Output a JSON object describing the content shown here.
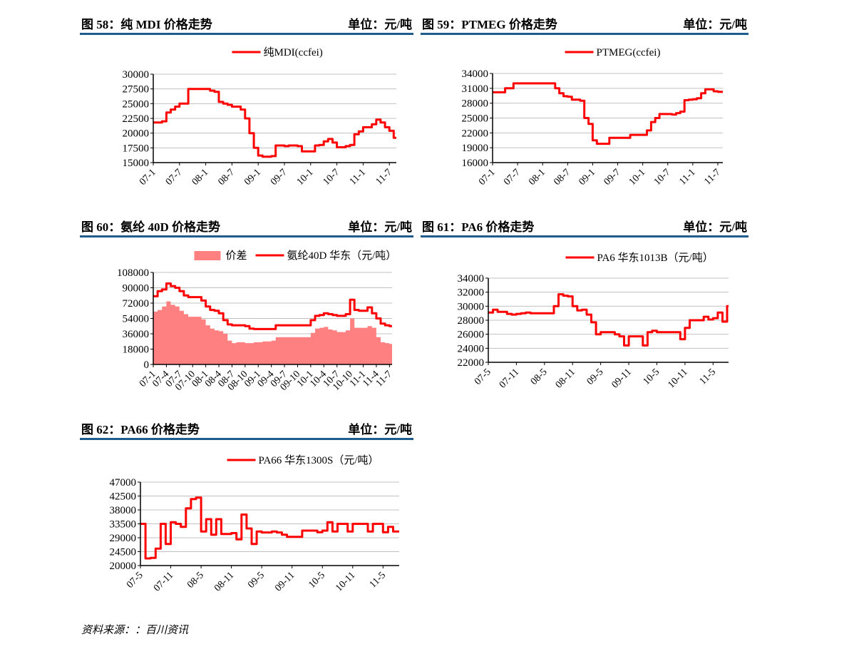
{
  "headers": [
    {
      "title": "图 58：纯 MDI 价格走势",
      "unit": "单位：元/吨"
    },
    {
      "title": "图 59：PTMEG 价格走势",
      "unit": "单位：元/吨"
    },
    {
      "title": "图 60：氨纶 40D 价格走势",
      "unit": "单位：元/吨"
    },
    {
      "title": "图 61：PA6 价格走势",
      "unit": "单位：元/吨"
    },
    {
      "title": "图 62：PA66 价格走势",
      "unit": "单位：元/吨"
    }
  ],
  "source": "资料来源：：百川资讯",
  "colors": {
    "line": "#ff0000",
    "area": "#ff8080",
    "grid": "#c0c0c0",
    "header_rule": "#1f5c8b"
  },
  "chart_data": [
    {
      "type": "line",
      "title": "纯 MDI 价格走势",
      "x_unit": "months since 2007-01",
      "xlim": [
        0,
        55.6
      ],
      "ylim": [
        15000,
        30000
      ],
      "yticks": [
        "15000",
        "17500",
        "20000",
        "22500",
        "25000",
        "27500",
        "30000"
      ],
      "xticks": [
        {
          "m": 0,
          "label": "07-1"
        },
        {
          "m": 6,
          "label": "07-7"
        },
        {
          "m": 12,
          "label": "08-1"
        },
        {
          "m": 18,
          "label": "08-7"
        },
        {
          "m": 24,
          "label": "09-1"
        },
        {
          "m": 30,
          "label": "09-7"
        },
        {
          "m": 36,
          "label": "10-1"
        },
        {
          "m": 42,
          "label": "10-7"
        },
        {
          "m": 48,
          "label": "11-1"
        },
        {
          "m": 54,
          "label": "11-7"
        }
      ],
      "legend": "top",
      "grid": true,
      "series": [
        {
          "name": "纯MDI(ccfei)",
          "kind": "line",
          "values": [
            21800,
            21800,
            22000,
            23500,
            24000,
            24500,
            25000,
            25000,
            27500,
            27500,
            27500,
            27500,
            27500,
            27200,
            27000,
            25300,
            25000,
            24800,
            24500,
            24500,
            24000,
            22500,
            20000,
            17500,
            16200,
            16000,
            16000,
            16100,
            17900,
            17900,
            17800,
            17900,
            17900,
            17800,
            16900,
            16900,
            16900,
            17900,
            18000,
            18600,
            19000,
            18400,
            17600,
            17600,
            17800,
            18000,
            19800,
            20300,
            21000,
            21000,
            21500,
            22300,
            21800,
            21000,
            20400,
            19200
          ]
        }
      ]
    },
    {
      "type": "line",
      "title": "PTMEG 价格走势",
      "x_unit": "months since 2007-01",
      "xlim": [
        0,
        55.2
      ],
      "ylim": [
        16000,
        34000
      ],
      "yticks": [
        "16000",
        "19000",
        "22000",
        "25000",
        "28000",
        "31000",
        "34000"
      ],
      "xticks": [
        {
          "m": 0,
          "label": "07-1"
        },
        {
          "m": 6,
          "label": "07-7"
        },
        {
          "m": 12,
          "label": "08-1"
        },
        {
          "m": 18,
          "label": "08-7"
        },
        {
          "m": 24,
          "label": "09-1"
        },
        {
          "m": 30,
          "label": "09-7"
        },
        {
          "m": 36,
          "label": "10-1"
        },
        {
          "m": 42,
          "label": "10-7"
        },
        {
          "m": 48,
          "label": "11-1"
        },
        {
          "m": 54,
          "label": "11-7"
        }
      ],
      "legend": "top",
      "grid": true,
      "series": [
        {
          "name": "PTMEG(ccfei)",
          "kind": "line",
          "values": [
            30200,
            30200,
            30200,
            31000,
            31000,
            32000,
            32000,
            32000,
            32000,
            32000,
            32000,
            32000,
            32000,
            32000,
            32000,
            31000,
            30000,
            29400,
            29300,
            28700,
            28700,
            28500,
            25000,
            23800,
            20500,
            19800,
            19800,
            19800,
            21000,
            21000,
            21000,
            21000,
            21000,
            21600,
            21600,
            21600,
            21600,
            22500,
            24200,
            25000,
            25800,
            25800,
            25800,
            25700,
            26000,
            26300,
            28600,
            28700,
            28800,
            29000,
            30000,
            30800,
            30800,
            30400,
            30300,
            30300
          ]
        }
      ]
    },
    {
      "type": "area",
      "title": "氨纶 40D 价格走势",
      "x_unit": "months since 2007-01",
      "xlim": [
        0,
        54.6
      ],
      "ylim": [
        0,
        108000
      ],
      "yticks": [
        "0",
        "18000",
        "36000",
        "54000",
        "72000",
        "90000",
        "108000"
      ],
      "xticks": [
        {
          "m": 0,
          "label": "07-1"
        },
        {
          "m": 3,
          "label": "07-4"
        },
        {
          "m": 6,
          "label": "07-7"
        },
        {
          "m": 9,
          "label": "07-10"
        },
        {
          "m": 12,
          "label": "08-1"
        },
        {
          "m": 15,
          "label": "08-4"
        },
        {
          "m": 18,
          "label": "08-7"
        },
        {
          "m": 21,
          "label": "08-10"
        },
        {
          "m": 24,
          "label": "09-1"
        },
        {
          "m": 27,
          "label": "09-4"
        },
        {
          "m": 30,
          "label": "09-7"
        },
        {
          "m": 33,
          "label": "09-10"
        },
        {
          "m": 36,
          "label": "10-1"
        },
        {
          "m": 39,
          "label": "10-4"
        },
        {
          "m": 42,
          "label": "10-7"
        },
        {
          "m": 45,
          "label": "10-10"
        },
        {
          "m": 48,
          "label": "11-1"
        },
        {
          "m": 51,
          "label": "11-4"
        },
        {
          "m": 54,
          "label": "11-7"
        }
      ],
      "legend": "top",
      "grid": true,
      "series": [
        {
          "name": "价差",
          "kind": "area",
          "values": [
            62000,
            64000,
            68000,
            74000,
            70000,
            68000,
            63000,
            59000,
            56000,
            56000,
            56000,
            53000,
            46000,
            42000,
            40000,
            39000,
            36000,
            28000,
            25000,
            26000,
            26000,
            25000,
            25000,
            26000,
            26000,
            27000,
            27000,
            28000,
            32000,
            32000,
            32000,
            32000,
            32000,
            32000,
            32000,
            32000,
            37000,
            42000,
            43000,
            44000,
            41000,
            40000,
            38000,
            38000,
            40000,
            54000,
            43000,
            43000,
            43000,
            45000,
            43000,
            32000,
            26000,
            25000,
            24000
          ]
        },
        {
          "name": "氨纶40D 华东（元/吨）",
          "kind": "line",
          "values": [
            80000,
            86000,
            88000,
            95000,
            92000,
            90000,
            86000,
            81000,
            79000,
            79000,
            79000,
            75000,
            68000,
            64000,
            63000,
            60000,
            52000,
            47000,
            46000,
            46000,
            46000,
            45000,
            42000,
            41500,
            41500,
            41500,
            41500,
            41500,
            46000,
            46000,
            46000,
            46000,
            46000,
            46000,
            46000,
            46000,
            52000,
            57000,
            58000,
            60000,
            59000,
            58000,
            57000,
            57000,
            59000,
            76000,
            64000,
            63000,
            63000,
            67000,
            60000,
            54000,
            48000,
            46000,
            45000
          ]
        }
      ]
    },
    {
      "type": "line",
      "title": "PA6 价格走势",
      "x_unit": "months since 2007-05",
      "xlim": [
        0,
        51.3
      ],
      "ylim": [
        22000,
        34000
      ],
      "yticks": [
        "22000",
        "24000",
        "26000",
        "28000",
        "30000",
        "32000",
        "34000"
      ],
      "xticks": [
        {
          "m": 0,
          "label": "07-5"
        },
        {
          "m": 6,
          "label": "07-11"
        },
        {
          "m": 12,
          "label": "08-5"
        },
        {
          "m": 18,
          "label": "08-11"
        },
        {
          "m": 24,
          "label": "09-5"
        },
        {
          "m": 30,
          "label": "09-11"
        },
        {
          "m": 36,
          "label": "10-5"
        },
        {
          "m": 42,
          "label": "10-11"
        },
        {
          "m": 48,
          "label": "11-5"
        }
      ],
      "legend": "top",
      "grid": true,
      "series": [
        {
          "name": "PA6 华东1013B（元/吨）",
          "kind": "line",
          "values": [
            29100,
            29500,
            29200,
            29200,
            28900,
            28800,
            28900,
            29000,
            29100,
            29000,
            29000,
            29000,
            29000,
            29000,
            30000,
            31700,
            31500,
            31400,
            30000,
            29400,
            29500,
            28800,
            27700,
            26000,
            26300,
            26300,
            26300,
            26000,
            25700,
            24400,
            25700,
            25700,
            25700,
            24400,
            26300,
            26500,
            26300,
            26300,
            26300,
            26300,
            26300,
            25300,
            26900,
            28000,
            28000,
            28000,
            28500,
            28100,
            28300,
            29100,
            27800,
            30000
          ]
        }
      ]
    },
    {
      "type": "line",
      "title": "PA66 价格走势",
      "x_unit": "months since 2007-05",
      "xlim": [
        0,
        51.2
      ],
      "ylim": [
        20000,
        47000
      ],
      "yticks": [
        "20000",
        "24500",
        "29000",
        "33500",
        "38000",
        "42500",
        "47000"
      ],
      "xticks": [
        {
          "m": 0,
          "label": "07-5"
        },
        {
          "m": 6,
          "label": "07-11"
        },
        {
          "m": 12,
          "label": "08-5"
        },
        {
          "m": 18,
          "label": "08-11"
        },
        {
          "m": 24,
          "label": "09-5"
        },
        {
          "m": 30,
          "label": "09-11"
        },
        {
          "m": 36,
          "label": "10-5"
        },
        {
          "m": 42,
          "label": "10-11"
        },
        {
          "m": 48,
          "label": "11-5"
        }
      ],
      "legend": "top",
      "grid": true,
      "series": [
        {
          "name": "PA66 华东1300S（元/吨）",
          "kind": "line",
          "values": [
            33500,
            22300,
            22500,
            25500,
            33500,
            27000,
            34000,
            33500,
            32500,
            38500,
            41500,
            42000,
            31000,
            35000,
            30000,
            35000,
            30200,
            30200,
            30500,
            28500,
            36500,
            32000,
            27000,
            31000,
            30700,
            30700,
            31000,
            30700,
            30000,
            29300,
            29300,
            29300,
            31300,
            31300,
            31300,
            30800,
            31300,
            34000,
            31000,
            33500,
            33500,
            31000,
            33500,
            33500,
            33500,
            31000,
            33500,
            33500,
            30800,
            32500,
            31000,
            31000
          ]
        }
      ]
    }
  ]
}
